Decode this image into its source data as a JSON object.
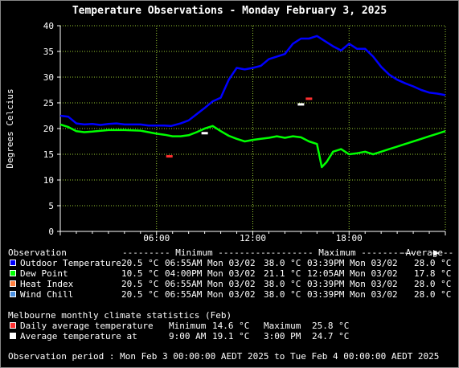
{
  "colors": {
    "grid": "#9acd32",
    "axis": "#ffffff",
    "outdoor": "#0000ff",
    "dewpoint": "#00ff00",
    "heat_index": "#ff8040",
    "wind_chill": "#4a90e2",
    "daily_avg": "#ff3030",
    "avg_temp": "#ffffff"
  },
  "chart_data": {
    "type": "line",
    "title": "Temperature Observations - Monday February 3, 2025",
    "ylabel": "Degrees Celcius",
    "xlabel": "",
    "ylim": [
      0,
      40
    ],
    "xlim_hours": [
      0,
      24
    ],
    "x_ticks": [
      "06:00",
      "12:00",
      "18:00"
    ],
    "y_ticks": [
      "0",
      "5",
      "10",
      "15",
      "20",
      "25",
      "30",
      "35",
      "40"
    ],
    "grid": true,
    "series": [
      {
        "name": "Outdoor Temperature",
        "color_key": "outdoor",
        "hours": [
          0,
          0.5,
          1,
          1.5,
          2,
          2.5,
          3,
          3.5,
          4,
          4.5,
          5,
          5.5,
          6,
          6.5,
          6.9,
          7.5,
          8,
          8.5,
          9,
          9.5,
          10,
          10.5,
          11,
          11.5,
          12,
          12.5,
          13,
          13.5,
          14,
          14.5,
          15,
          15.5,
          16,
          16.5,
          17,
          17.5,
          18,
          18.5,
          19,
          19.5,
          20,
          20.5,
          21,
          21.5,
          22,
          22.5,
          23,
          23.5,
          24
        ],
        "values": [
          22.5,
          22.3,
          21.0,
          20.8,
          20.9,
          20.7,
          20.9,
          21.0,
          20.8,
          20.8,
          20.8,
          20.6,
          20.6,
          20.6,
          20.5,
          21.0,
          21.6,
          22.8,
          24.0,
          25.3,
          26.0,
          29.5,
          31.8,
          31.5,
          31.8,
          32.2,
          33.5,
          34.0,
          34.5,
          36.5,
          37.5,
          37.5,
          38.0,
          37.0,
          36.0,
          35.2,
          36.5,
          35.5,
          35.5,
          34.0,
          32.0,
          30.5,
          29.5,
          28.8,
          28.2,
          27.5,
          27.0,
          26.8,
          26.5
        ]
      },
      {
        "name": "Dew Point",
        "color_key": "dewpoint",
        "hours": [
          0,
          0.5,
          1,
          1.5,
          2,
          3,
          4,
          5,
          5.5,
          6,
          6.5,
          7,
          7.5,
          8,
          8.5,
          9,
          9.5,
          10,
          10.5,
          11,
          11.5,
          12,
          12.5,
          13,
          13.5,
          14,
          14.5,
          15,
          15.5,
          16,
          16.3,
          16.6,
          17,
          17.5,
          18,
          18.5,
          19,
          19.5,
          20,
          20.5,
          21,
          21.5,
          22,
          22.5,
          23,
          23.5,
          24
        ],
        "values": [
          20.8,
          20.3,
          19.5,
          19.3,
          19.4,
          19.7,
          19.7,
          19.6,
          19.3,
          19.0,
          18.8,
          18.5,
          18.5,
          18.7,
          19.3,
          20.0,
          20.5,
          19.5,
          18.6,
          18.0,
          17.5,
          17.8,
          18.0,
          18.2,
          18.5,
          18.2,
          18.5,
          18.3,
          17.5,
          17.0,
          12.5,
          13.5,
          15.5,
          16.0,
          15.0,
          15.2,
          15.5,
          15.0,
          15.5,
          16.0,
          16.5,
          17.0,
          17.5,
          18.0,
          18.5,
          19.0,
          19.5
        ]
      }
    ],
    "markers": [
      {
        "name": "Daily average temperature",
        "color_key": "daily_avg",
        "min": {
          "hour": 6.8,
          "value": 14.6
        },
        "max": {
          "hour": 15.5,
          "value": 25.8
        }
      },
      {
        "name": "Average temperature at",
        "color_key": "avg_temp",
        "min": {
          "hour": 9.0,
          "value": 19.1
        },
        "max": {
          "hour": 15.0,
          "value": 24.7
        }
      }
    ]
  },
  "legend": {
    "headers": {
      "observation": "Observation",
      "minimum": "--------- Minimum ----------",
      "maximum": "--------- Maximum ----------",
      "average": "-Average--"
    },
    "rows": [
      {
        "label": "Outdoor Temperature",
        "color_key": "outdoor",
        "min_val": "20.5 °C",
        "min_time": "06:55AM Mon 03/02",
        "max_val": "38.0 °C",
        "max_time": "03:39PM Mon 03/02",
        "avg": "28.0 °C"
      },
      {
        "label": "Dew Point",
        "color_key": "dewpoint",
        "min_val": "10.5 °C",
        "min_time": "04:00PM Mon 03/02",
        "max_val": "21.1 °C",
        "max_time": "12:05AM Mon 03/02",
        "avg": "17.8 °C"
      },
      {
        "label": "Heat Index",
        "color_key": "heat_index",
        "min_val": "20.5 °C",
        "min_time": "06:55AM Mon 03/02",
        "max_val": "38.0 °C",
        "max_time": "03:39PM Mon 03/02",
        "avg": "28.0 °C"
      },
      {
        "label": "Wind Chill",
        "color_key": "wind_chill",
        "min_val": "20.5 °C",
        "min_time": "06:55AM Mon 03/02",
        "max_val": "38.0 °C",
        "max_time": "03:39PM Mon 03/02",
        "avg": "28.0 °C"
      }
    ]
  },
  "climate": {
    "heading": "Melbourne monthly climate statistics (Feb)",
    "rows": [
      {
        "label": "Daily average temperature",
        "color_key": "daily_avg",
        "min_label": "Minimum",
        "min_val": "14.6 °C",
        "max_label": "Maximum",
        "max_val": "25.8 °C"
      },
      {
        "label": "Average temperature at",
        "color_key": "avg_temp",
        "min_label": "9:00 AM",
        "min_val": "19.1 °C",
        "max_label": "3:00 PM",
        "max_val": "24.7 °C"
      }
    ]
  },
  "footer": "Observation period : Mon Feb 3 00:00:00 AEDT 2025 to Tue Feb 4 00:00:00 AEDT 2025",
  "icons": {
    "scroll_arrow": "right-triangle-icon"
  }
}
